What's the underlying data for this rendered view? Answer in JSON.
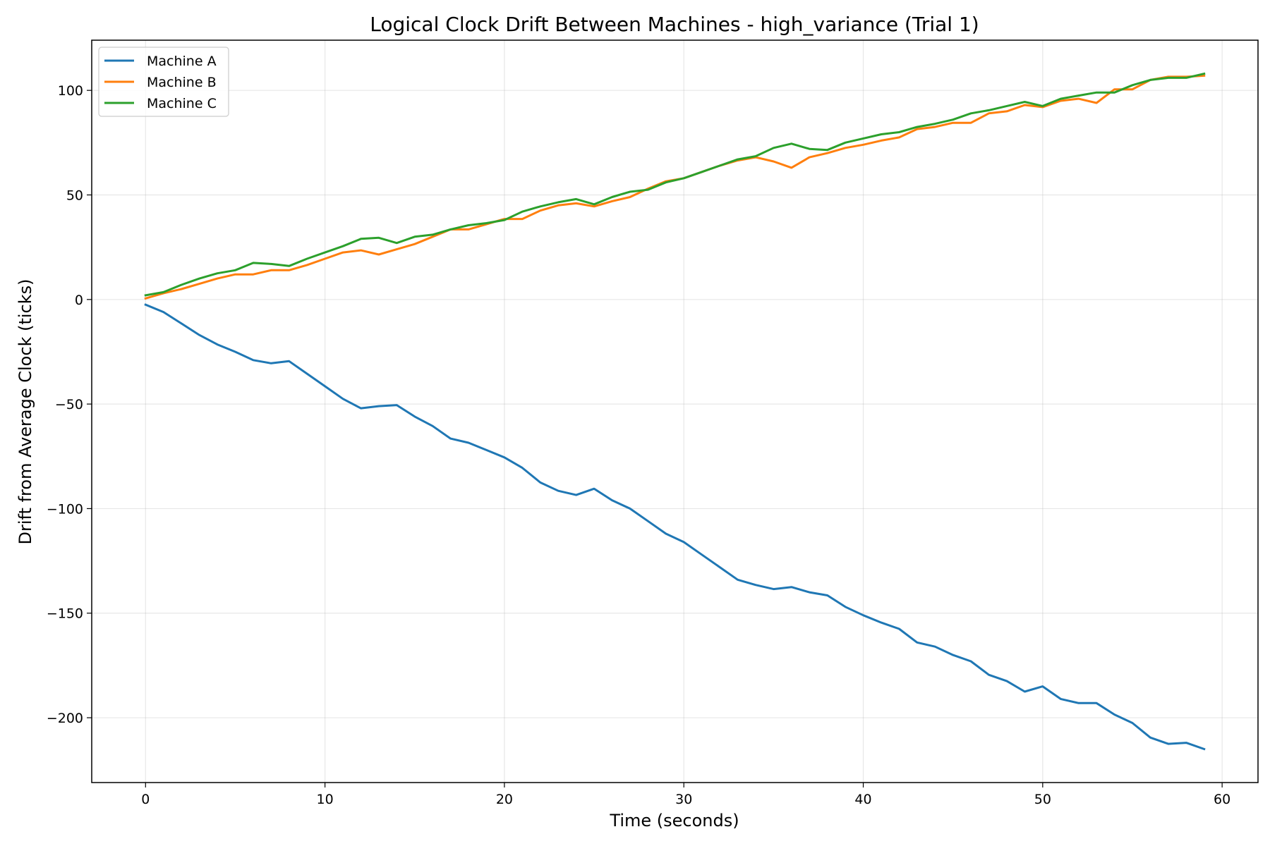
{
  "chart_data": {
    "type": "line",
    "title": "Logical Clock Drift Between Machines - high_variance (Trial 1)",
    "xlabel": "Time (seconds)",
    "ylabel": "Drift from Average Clock (ticks)",
    "xlim": [
      -3,
      62
    ],
    "ylim": [
      -231,
      124
    ],
    "xticks": [
      0,
      10,
      20,
      30,
      40,
      50,
      60
    ],
    "yticks": [
      100,
      50,
      0,
      -50,
      -100,
      -150,
      -200
    ],
    "grid": true,
    "legend_position": "top-left",
    "x": [
      0,
      1,
      2,
      3,
      4,
      5,
      6,
      7,
      8,
      9,
      10,
      11,
      12,
      13,
      14,
      15,
      16,
      17,
      18,
      19,
      20,
      21,
      22,
      23,
      24,
      25,
      26,
      27,
      28,
      29,
      30,
      31,
      32,
      33,
      34,
      35,
      36,
      37,
      38,
      39,
      40,
      41,
      42,
      43,
      44,
      45,
      46,
      47,
      48,
      49,
      50,
      51,
      52,
      53,
      54,
      55,
      56,
      57,
      58,
      59
    ],
    "series": [
      {
        "name": "Machine A",
        "color": "#1f77b4",
        "values": [
          -2.5,
          -6,
          -11.5,
          -17,
          -21.5,
          -25,
          -29,
          -30.5,
          -29.5,
          -35.5,
          -41.5,
          -47.5,
          -52,
          -51,
          -50.5,
          -56,
          -60.5,
          -66.5,
          -68.5,
          -72,
          -75.5,
          -80.5,
          -87.5,
          -91.5,
          -93.5,
          -90.5,
          -96,
          -100,
          -106,
          -112,
          -116,
          -122,
          -128,
          -134,
          -136.5,
          -138.5,
          -137.5,
          -140,
          -141.5,
          -147,
          -151,
          -154.5,
          -157.5,
          -164,
          -166,
          -170,
          -173,
          -179.5,
          -182.5,
          -187.5,
          -185,
          -191,
          -193,
          -193,
          -198.5,
          -202.5,
          -209.5,
          -212.5,
          -212,
          -215
        ]
      },
      {
        "name": "Machine B",
        "color": "#ff7f0e",
        "values": [
          0.5,
          3,
          5,
          7.5,
          10,
          12,
          12,
          14,
          14,
          16.5,
          19.5,
          22.5,
          23.5,
          21.5,
          24,
          26.5,
          30,
          33.5,
          33.5,
          36,
          38.5,
          38.5,
          42.5,
          45,
          46,
          44.5,
          47,
          49,
          53,
          56.5,
          58,
          61,
          64,
          66.5,
          68,
          66,
          63,
          68,
          70,
          72.5,
          74,
          76,
          77.5,
          81.5,
          82.5,
          84.5,
          84.5,
          89,
          90,
          93,
          92,
          95,
          96,
          94,
          100.5,
          100.5,
          105,
          106.5,
          106.5,
          107
        ]
      },
      {
        "name": "Machine C",
        "color": "#2ca02c",
        "values": [
          2,
          3.5,
          7,
          10,
          12.5,
          14,
          17.5,
          17,
          16,
          19.5,
          22.5,
          25.5,
          29,
          29.5,
          27,
          30,
          31,
          33.5,
          35.5,
          36.5,
          38,
          42,
          44.5,
          46.5,
          48,
          45.5,
          49,
          51.5,
          52.5,
          56,
          58,
          61,
          64,
          67,
          68.5,
          72.5,
          74.5,
          72,
          71.5,
          75,
          77,
          79,
          80,
          82.5,
          84,
          86,
          89,
          90.5,
          92.5,
          94.5,
          92.5,
          96,
          97.5,
          99,
          99,
          102.5,
          105,
          106,
          106,
          108
        ]
      }
    ]
  }
}
